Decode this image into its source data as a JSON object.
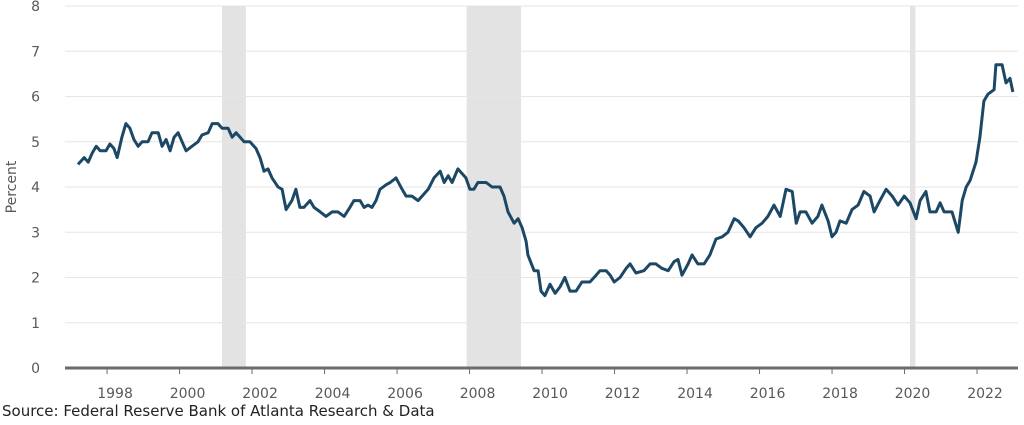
{
  "chart_data": {
    "type": "line",
    "y_label": "Percent",
    "source": "Source: Federal Reserve Bank of Atlanta Research & Data",
    "color": "#1c4866",
    "grid": true,
    "xlim": [
      1996.84,
      2023.13
    ],
    "ylim": [
      0,
      8
    ],
    "xticks": [
      1998,
      2000,
      2002,
      2004,
      2006,
      2008,
      2010,
      2012,
      2014,
      2016,
      2018,
      2020,
      2022
    ],
    "yticks": [
      0,
      1,
      2,
      3,
      4,
      5,
      6,
      7,
      8
    ],
    "recessions": [
      [
        2001.17,
        2001.83
      ],
      [
        2007.92,
        2009.42
      ],
      [
        2020.15,
        2020.3
      ]
    ],
    "recession_color": "#e3e3e3",
    "x": [
      1997.2,
      1997.37,
      1997.48,
      1997.59,
      1997.7,
      1997.81,
      1997.97,
      1998.08,
      1998.19,
      1998.28,
      1998.41,
      1998.52,
      1998.63,
      1998.74,
      1998.86,
      1998.97,
      1999.13,
      1999.24,
      1999.41,
      1999.52,
      1999.63,
      1999.74,
      1999.85,
      1999.96,
      2000.07,
      2000.18,
      2000.34,
      2000.51,
      2000.62,
      2000.79,
      2000.9,
      2001.06,
      2001.17,
      2001.34,
      2001.45,
      2001.56,
      2001.67,
      2001.78,
      2001.94,
      2002.11,
      2002.22,
      2002.33,
      2002.44,
      2002.55,
      2002.72,
      2002.83,
      2002.94,
      2003.1,
      2003.21,
      2003.32,
      2003.43,
      2003.6,
      2003.71,
      2003.88,
      2004.04,
      2004.21,
      2004.37,
      2004.54,
      2004.7,
      2004.81,
      2004.98,
      2005.09,
      2005.2,
      2005.31,
      2005.42,
      2005.53,
      2005.7,
      2005.81,
      2005.97,
      2006.14,
      2006.25,
      2006.41,
      2006.58,
      2006.69,
      2006.86,
      2007.02,
      2007.19,
      2007.3,
      2007.41,
      2007.52,
      2007.68,
      2007.79,
      2007.9,
      2008.01,
      2008.12,
      2008.23,
      2008.46,
      2008.62,
      2008.84,
      2008.95,
      2009.06,
      2009.23,
      2009.34,
      2009.45,
      2009.56,
      2009.61,
      2009.78,
      2009.89,
      2009.97,
      2010.08,
      2010.22,
      2010.36,
      2010.5,
      2010.63,
      2010.77,
      2010.94,
      2011.1,
      2011.32,
      2011.49,
      2011.6,
      2011.77,
      2011.88,
      2011.99,
      2012.15,
      2012.32,
      2012.43,
      2012.59,
      2012.81,
      2012.98,
      2013.14,
      2013.31,
      2013.48,
      2013.64,
      2013.75,
      2013.86,
      2014.03,
      2014.14,
      2014.3,
      2014.47,
      2014.63,
      2014.8,
      2014.97,
      2015.13,
      2015.3,
      2015.41,
      2015.57,
      2015.74,
      2015.9,
      2016.07,
      2016.23,
      2016.4,
      2016.57,
      2016.73,
      2016.9,
      2017.01,
      2017.12,
      2017.28,
      2017.45,
      2017.61,
      2017.72,
      2017.89,
      2018.0,
      2018.11,
      2018.22,
      2018.39,
      2018.55,
      2018.72,
      2018.88,
      2019.05,
      2019.16,
      2019.32,
      2019.49,
      2019.66,
      2019.82,
      2019.99,
      2020.15,
      2020.32,
      2020.43,
      2020.59,
      2020.7,
      2020.87,
      2020.98,
      2021.09,
      2021.31,
      2021.48,
      2021.59,
      2021.7,
      2021.81,
      2021.97,
      2022.08,
      2022.19,
      2022.3,
      2022.47,
      2022.52,
      2022.69,
      2022.8,
      2022.91,
      2022.99
    ],
    "values": [
      4.5,
      4.65,
      4.55,
      4.75,
      4.9,
      4.8,
      4.8,
      4.95,
      4.85,
      4.65,
      5.1,
      5.4,
      5.3,
      5.05,
      4.9,
      5.0,
      5.0,
      5.2,
      5.2,
      4.9,
      5.05,
      4.8,
      5.1,
      5.2,
      5.0,
      4.8,
      4.9,
      5.0,
      5.15,
      5.2,
      5.4,
      5.4,
      5.3,
      5.3,
      5.1,
      5.2,
      5.1,
      5.0,
      5.0,
      4.85,
      4.65,
      4.35,
      4.4,
      4.2,
      4.0,
      3.95,
      3.5,
      3.7,
      3.95,
      3.55,
      3.55,
      3.7,
      3.55,
      3.45,
      3.35,
      3.45,
      3.45,
      3.35,
      3.55,
      3.7,
      3.7,
      3.55,
      3.6,
      3.55,
      3.7,
      3.95,
      4.05,
      4.1,
      4.2,
      3.95,
      3.8,
      3.8,
      3.7,
      3.8,
      3.95,
      4.2,
      4.35,
      4.1,
      4.25,
      4.1,
      4.4,
      4.3,
      4.2,
      3.95,
      3.95,
      4.1,
      4.1,
      4.0,
      4.0,
      3.8,
      3.45,
      3.2,
      3.3,
      3.1,
      2.8,
      2.5,
      2.15,
      2.15,
      1.7,
      1.6,
      1.85,
      1.65,
      1.8,
      2.0,
      1.7,
      1.7,
      1.9,
      1.9,
      2.05,
      2.15,
      2.15,
      2.05,
      1.9,
      2.0,
      2.2,
      2.3,
      2.1,
      2.15,
      2.3,
      2.3,
      2.2,
      2.15,
      2.35,
      2.4,
      2.05,
      2.3,
      2.5,
      2.3,
      2.3,
      2.5,
      2.85,
      2.9,
      3.0,
      3.3,
      3.25,
      3.1,
      2.9,
      3.1,
      3.2,
      3.35,
      3.6,
      3.35,
      3.95,
      3.9,
      3.2,
      3.45,
      3.45,
      3.2,
      3.35,
      3.6,
      3.25,
      2.9,
      3.0,
      3.25,
      3.2,
      3.5,
      3.6,
      3.9,
      3.8,
      3.45,
      3.7,
      3.95,
      3.8,
      3.6,
      3.8,
      3.65,
      3.3,
      3.7,
      3.9,
      3.45,
      3.45,
      3.65,
      3.45,
      3.45,
      3.0,
      3.7,
      4.0,
      4.15,
      4.55,
      5.1,
      5.9,
      6.05,
      6.15,
      6.7,
      6.7,
      6.3,
      6.4,
      6.1
    ]
  }
}
